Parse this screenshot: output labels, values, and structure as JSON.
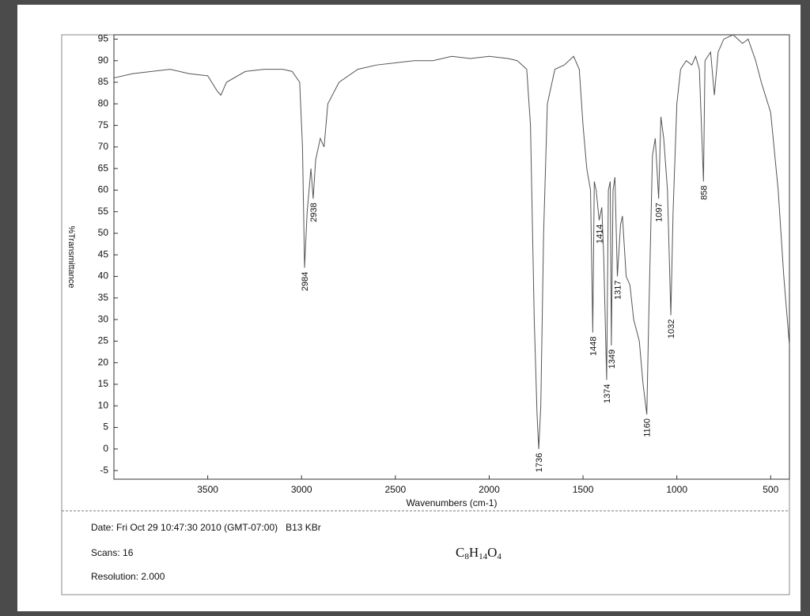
{
  "chart_data": {
    "type": "line",
    "x_label": "Wavenumbers (cm-1)",
    "y_label": "%Transmittance",
    "x": [
      4000,
      3900,
      3800,
      3700,
      3600,
      3500,
      3450,
      3430,
      3400,
      3300,
      3200,
      3100,
      3050,
      3010,
      2995,
      2984,
      2970,
      2950,
      2938,
      2925,
      2900,
      2880,
      2860,
      2800,
      2700,
      2600,
      2500,
      2400,
      2300,
      2200,
      2100,
      2000,
      1900,
      1850,
      1800,
      1780,
      1760,
      1745,
      1736,
      1725,
      1710,
      1690,
      1650,
      1600,
      1550,
      1520,
      1500,
      1480,
      1460,
      1448,
      1440,
      1430,
      1414,
      1400,
      1390,
      1374,
      1365,
      1355,
      1349,
      1340,
      1330,
      1317,
      1300,
      1290,
      1270,
      1250,
      1230,
      1200,
      1180,
      1160,
      1150,
      1130,
      1115,
      1097,
      1085,
      1070,
      1050,
      1032,
      1020,
      1000,
      980,
      950,
      920,
      900,
      880,
      858,
      850,
      820,
      800,
      780,
      750,
      700,
      650,
      620,
      580,
      550,
      500,
      460,
      430,
      400
    ],
    "series": [
      {
        "color": "#555555",
        "values": [
          86,
          87,
          87.5,
          88,
          87,
          86.5,
          83,
          82,
          85,
          87.5,
          88,
          88,
          87.5,
          85,
          70,
          42,
          55,
          65,
          58,
          67,
          72,
          70,
          80,
          85,
          88,
          89,
          89.5,
          90,
          90,
          91,
          90.5,
          91,
          90.5,
          90,
          88,
          75,
          30,
          8,
          0,
          10,
          50,
          80,
          88,
          89,
          91,
          88,
          75,
          65,
          60,
          27,
          62,
          60,
          53,
          56,
          45,
          16,
          60,
          62,
          24,
          60,
          63,
          40,
          52,
          54,
          40,
          38,
          30,
          25,
          15,
          8,
          30,
          68,
          72,
          58,
          77,
          72,
          60,
          31,
          55,
          80,
          88,
          90,
          89,
          91,
          88,
          62,
          90,
          92,
          82,
          92,
          95,
          96,
          94,
          95,
          90,
          85,
          78,
          60,
          40,
          24
        ]
      }
    ],
    "xlim": [
      4000,
      400
    ],
    "ylim": [
      -7,
      96
    ],
    "xticks": [
      3500,
      3000,
      2500,
      2000,
      1500,
      1000,
      500
    ],
    "yticks": [
      -5,
      0,
      5,
      10,
      15,
      20,
      25,
      30,
      35,
      40,
      45,
      50,
      55,
      60,
      65,
      70,
      75,
      80,
      85,
      90,
      95
    ],
    "peak_labels": [
      2984,
      2938,
      1736,
      1448,
      1414,
      1374,
      1349,
      1317,
      1160,
      1097,
      1032,
      858
    ]
  },
  "footer": {
    "date": "Date: Fri Oct 29 10:47:30 2010 (GMT-07:00)   B13 KBr",
    "scans": "Scans: 16",
    "resolution": "Resolution: 2.000",
    "formula": [
      "C",
      "8",
      "H",
      "14",
      "O",
      "4"
    ]
  }
}
